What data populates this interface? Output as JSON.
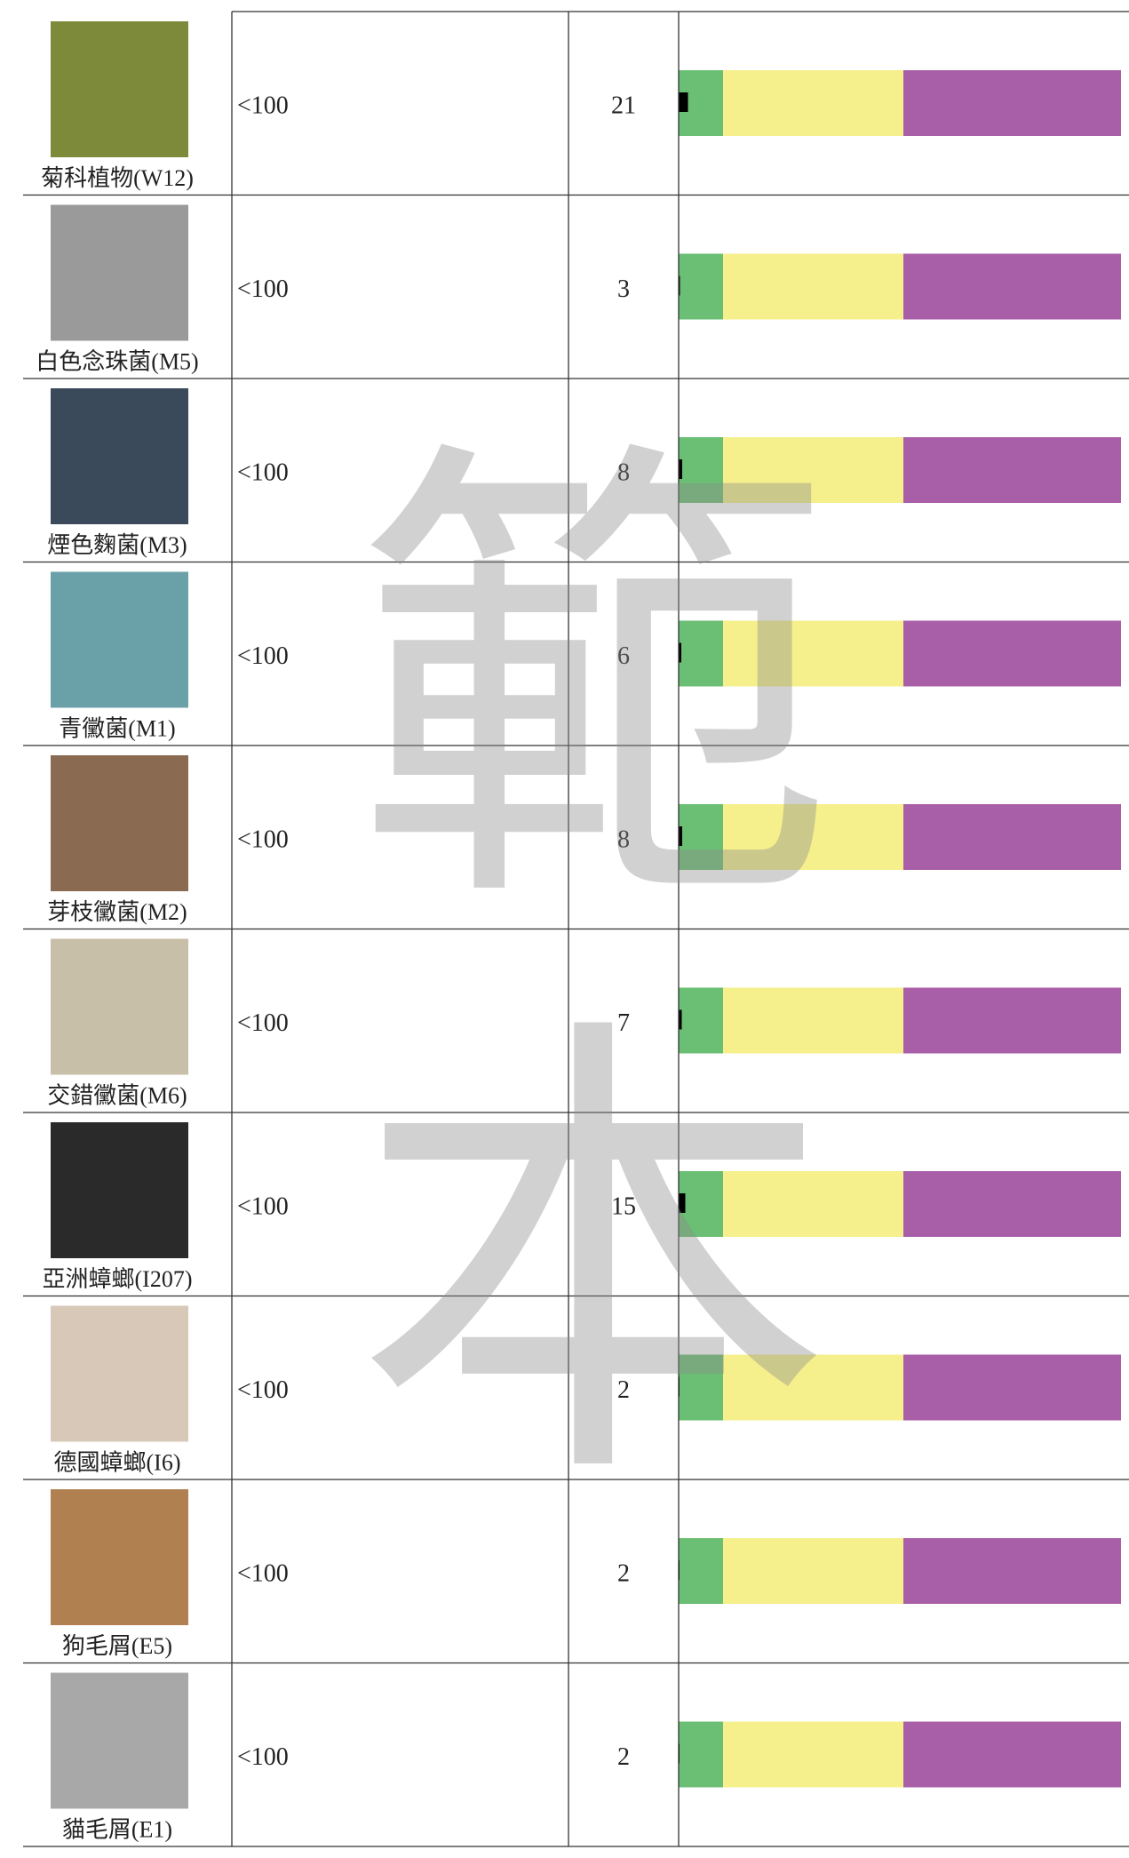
{
  "rows": [
    {
      "name": "菊科植物(W12)",
      "level": "<100",
      "count": 21
    },
    {
      "name": "白色念珠菌(M5)",
      "level": "<100",
      "count": 3
    },
    {
      "name": "煙色麴菌(M3)",
      "level": "<100",
      "count": 8
    },
    {
      "name": "青黴菌(M1)",
      "level": "<100",
      "count": 6
    },
    {
      "name": "芽枝黴菌(M2)",
      "level": "<100",
      "count": 8
    },
    {
      "name": "交錯黴菌(M6)",
      "level": "<100",
      "count": 7
    },
    {
      "name": "亞洲蟑螂(I207)",
      "level": "<100",
      "count": 15
    },
    {
      "name": "德國蟑螂(I6)",
      "level": "<100",
      "count": 2
    },
    {
      "name": "狗毛屑(E5)",
      "level": "<100",
      "count": 2
    },
    {
      "name": "貓毛屑(E1)",
      "level": "<100",
      "count": 2
    }
  ],
  "watermark": [
    "範",
    "本"
  ]
}
